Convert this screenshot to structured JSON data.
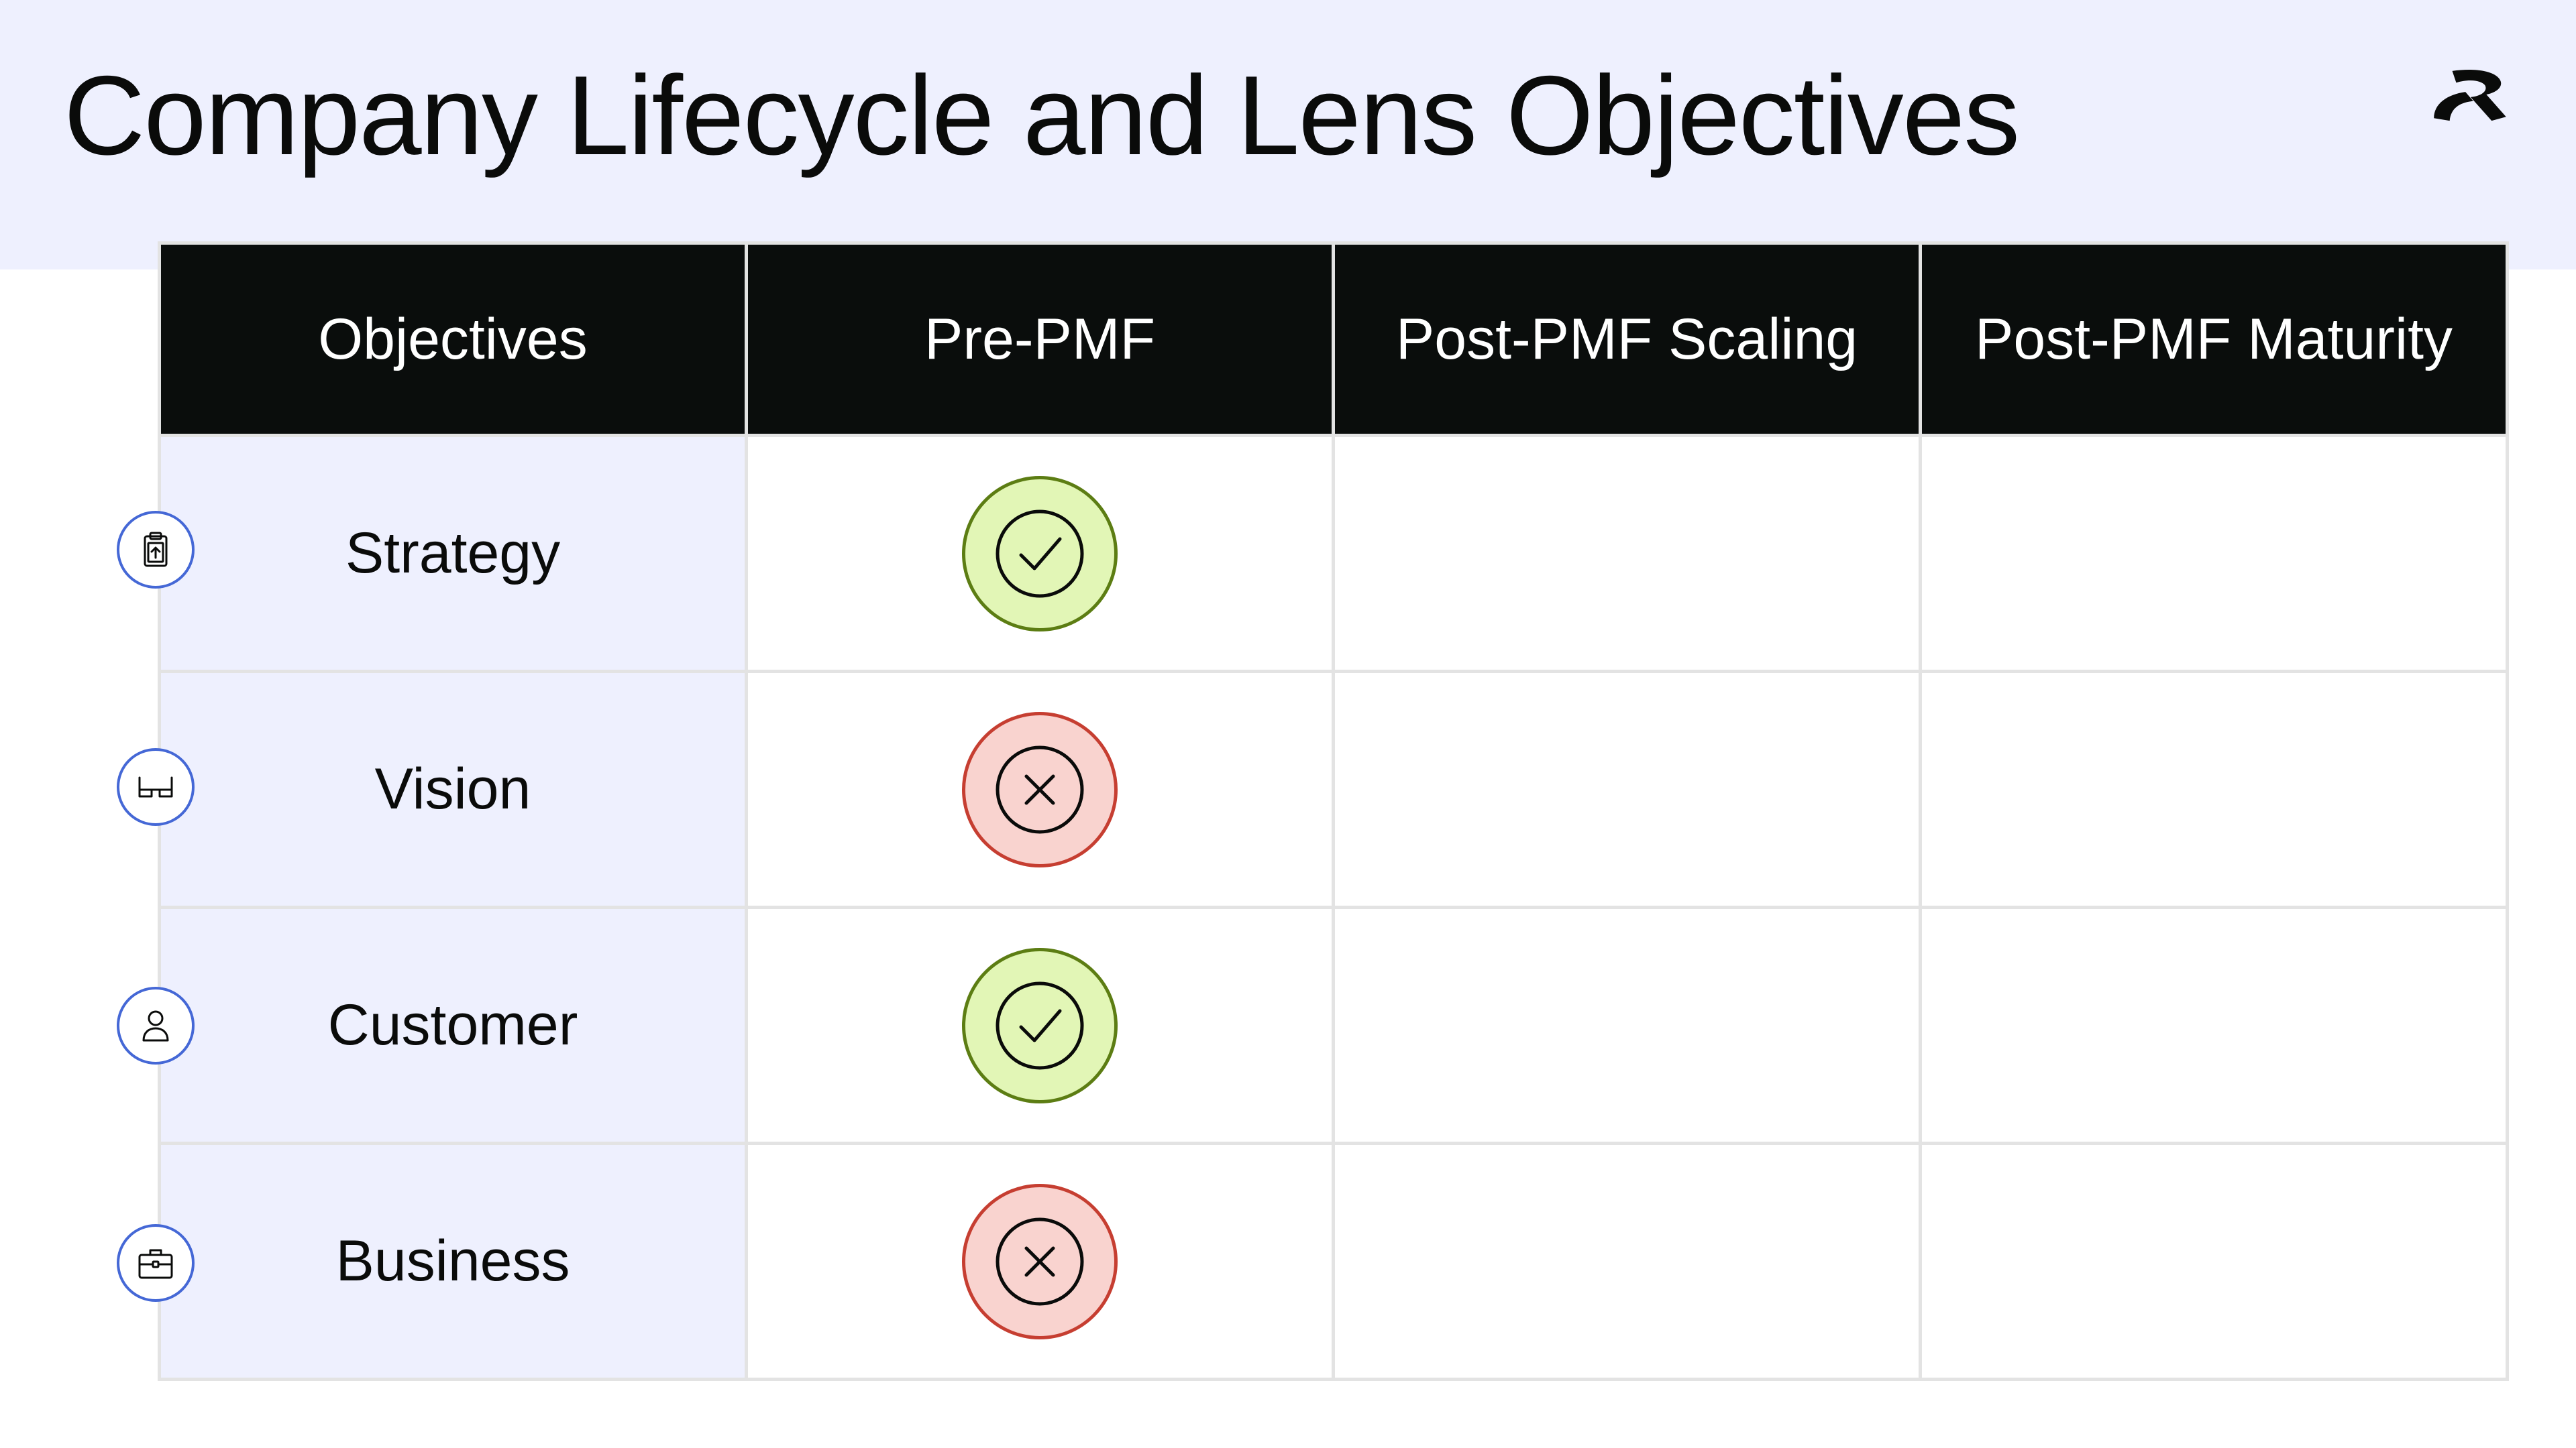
{
  "title": "Company Lifecycle and Lens Objectives",
  "logo": {
    "icon": "brand-logo-icon"
  },
  "table": {
    "headers": [
      "Objectives",
      "Pre-PMF",
      "Post-PMF Scaling",
      "Post-PMF Maturity"
    ],
    "rows": [
      {
        "objective": "Strategy",
        "icon": "clipboard-upload-icon",
        "pre_pmf": "check",
        "post_pmf_scaling": "",
        "post_pmf_maturity": ""
      },
      {
        "objective": "Vision",
        "icon": "glasses-icon",
        "pre_pmf": "cross",
        "post_pmf_scaling": "",
        "post_pmf_maturity": ""
      },
      {
        "objective": "Customer",
        "icon": "person-icon",
        "pre_pmf": "check",
        "post_pmf_scaling": "",
        "post_pmf_maturity": ""
      },
      {
        "objective": "Business",
        "icon": "briefcase-icon",
        "pre_pmf": "cross",
        "post_pmf_scaling": "",
        "post_pmf_maturity": ""
      }
    ]
  },
  "colors": {
    "header_band": "#eef0fe",
    "table_header": "#0a0d0c",
    "check_fill": "#e2f6b6",
    "check_stroke": "#5c7d13",
    "cross_fill": "#f9d3cf",
    "cross_stroke": "#c63e31",
    "icon_ring": "#4568d6"
  }
}
